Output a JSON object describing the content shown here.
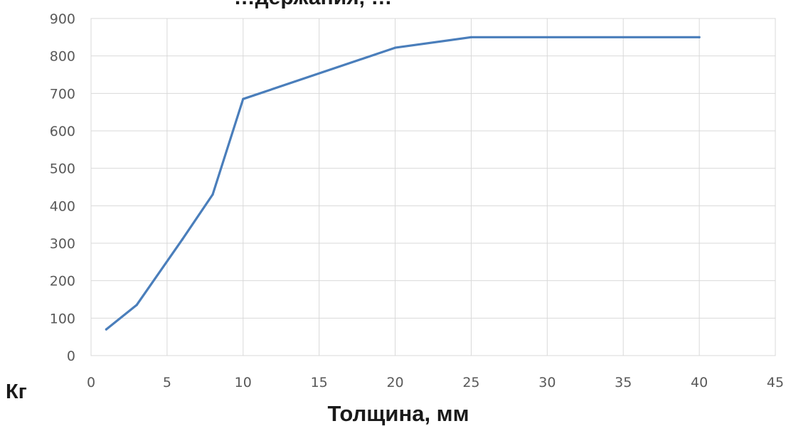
{
  "chart_data": {
    "type": "line",
    "title": "…держания, …",
    "xlabel": "Толщина, мм",
    "ylabel": "Кг",
    "xlim": [
      0,
      45
    ],
    "ylim": [
      0,
      900
    ],
    "x_ticks": [
      "0",
      "5",
      "10",
      "15",
      "20",
      "25",
      "30",
      "35",
      "40",
      "45"
    ],
    "y_ticks": [
      "0",
      "100",
      "200",
      "300",
      "400",
      "500",
      "600",
      "700",
      "800",
      "900"
    ],
    "grid": true,
    "legend": "none",
    "series": [
      {
        "color": "#4a7ebb",
        "x": [
          1,
          3,
          6,
          8,
          10,
          20,
          25,
          40
        ],
        "y": [
          70,
          135,
          310,
          430,
          685,
          822,
          850,
          850
        ]
      }
    ]
  }
}
